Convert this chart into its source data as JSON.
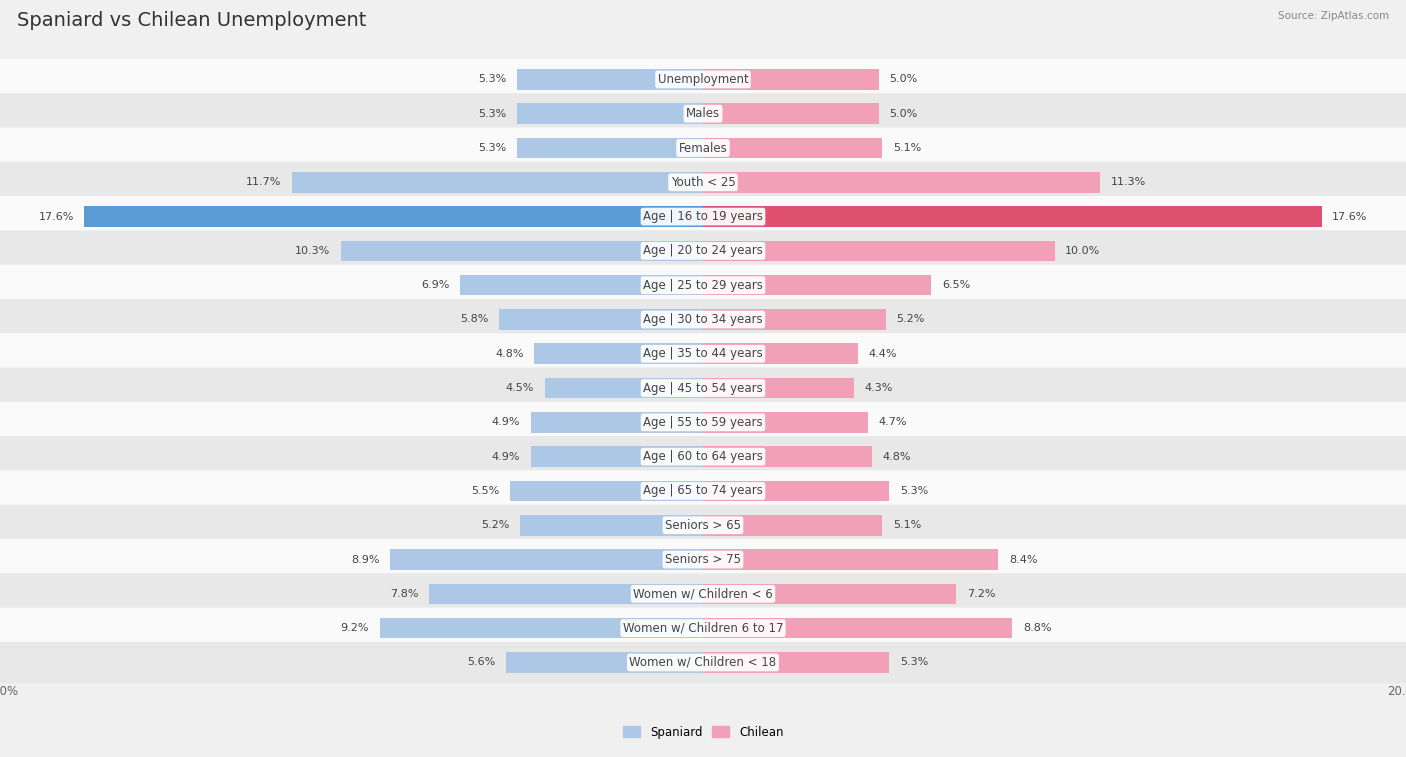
{
  "title": "Spaniard vs Chilean Unemployment",
  "source": "Source: ZipAtlas.com",
  "categories": [
    "Unemployment",
    "Males",
    "Females",
    "Youth < 25",
    "Age | 16 to 19 years",
    "Age | 20 to 24 years",
    "Age | 25 to 29 years",
    "Age | 30 to 34 years",
    "Age | 35 to 44 years",
    "Age | 45 to 54 years",
    "Age | 55 to 59 years",
    "Age | 60 to 64 years",
    "Age | 65 to 74 years",
    "Seniors > 65",
    "Seniors > 75",
    "Women w/ Children < 6",
    "Women w/ Children 6 to 17",
    "Women w/ Children < 18"
  ],
  "spaniard": [
    5.3,
    5.3,
    5.3,
    11.7,
    17.6,
    10.3,
    6.9,
    5.8,
    4.8,
    4.5,
    4.9,
    4.9,
    5.5,
    5.2,
    8.9,
    7.8,
    9.2,
    5.6
  ],
  "chilean": [
    5.0,
    5.0,
    5.1,
    11.3,
    17.6,
    10.0,
    6.5,
    5.2,
    4.4,
    4.3,
    4.7,
    4.8,
    5.3,
    5.1,
    8.4,
    7.2,
    8.8,
    5.3
  ],
  "spaniard_color": "#adc8e6",
  "chilean_color": "#f2a0b8",
  "highlight_spaniard_color": "#5b9bd5",
  "highlight_chilean_color": "#e05070",
  "highlight_row": 4,
  "bar_height": 0.6,
  "max_val": 20.0,
  "bg_color": "#f0f0f0",
  "row_bg_light": "#fafafa",
  "row_bg_dark": "#e8e8e8",
  "label_color": "#444444",
  "value_color": "#444444",
  "font_size_title": 14,
  "font_size_labels": 8.5,
  "font_size_values": 8,
  "font_size_axis": 8.5,
  "legend_spaniard": "Spaniard",
  "legend_chilean": "Chilean"
}
